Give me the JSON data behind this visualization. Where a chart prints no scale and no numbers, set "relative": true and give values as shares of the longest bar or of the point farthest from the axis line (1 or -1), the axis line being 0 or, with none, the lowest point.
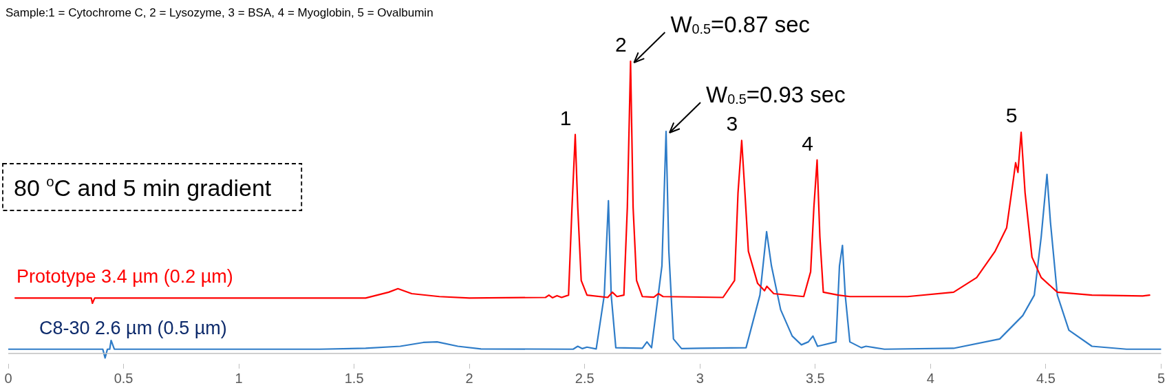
{
  "chart_data": {
    "type": "line",
    "relative": true,
    "xlim": [
      0,
      5
    ],
    "xticks": [
      0,
      0.5,
      1,
      1.5,
      2,
      2.5,
      3,
      3.5,
      4,
      4.5,
      5
    ],
    "grid": false,
    "legend": false,
    "marker": "none",
    "line_style": "solid",
    "series": [
      {
        "name": "Prototype 3.4 µm (0.2 µm)",
        "color": "#ff0000",
        "x": [
          0.03,
          0.36,
          0.365,
          0.375,
          1.55,
          1.65,
          1.69,
          1.75,
          1.87,
          2.0,
          2.33,
          2.345,
          2.36,
          2.38,
          2.4,
          2.43,
          2.445,
          2.459,
          2.47,
          2.485,
          2.51,
          2.6,
          2.62,
          2.64,
          2.67,
          2.685,
          2.699,
          2.71,
          2.725,
          2.75,
          2.8,
          2.82,
          2.84,
          3.1,
          3.15,
          3.165,
          3.181,
          3.195,
          3.21,
          3.25,
          3.28,
          3.29,
          3.32,
          3.45,
          3.48,
          3.494,
          3.508,
          3.52,
          3.535,
          3.6,
          3.65,
          3.9,
          4.1,
          4.2,
          4.28,
          4.33,
          4.36,
          4.369,
          4.379,
          4.393,
          4.41,
          4.44,
          4.48,
          4.55,
          4.7,
          4.92,
          4.95
        ],
        "values": [
          0.19,
          0.19,
          0.172,
          0.19,
          0.19,
          0.21,
          0.222,
          0.205,
          0.195,
          0.19,
          0.192,
          0.2,
          0.191,
          0.198,
          0.192,
          0.2,
          0.5,
          0.749,
          0.5,
          0.25,
          0.2,
          0.192,
          0.21,
          0.195,
          0.2,
          0.5,
          1.0,
          0.5,
          0.25,
          0.195,
          0.193,
          0.205,
          0.195,
          0.192,
          0.25,
          0.55,
          0.729,
          0.55,
          0.35,
          0.24,
          0.215,
          0.23,
          0.205,
          0.195,
          0.28,
          0.5,
          0.662,
          0.4,
          0.21,
          0.2,
          0.195,
          0.195,
          0.21,
          0.26,
          0.35,
          0.43,
          0.6,
          0.653,
          0.62,
          0.757,
          0.55,
          0.33,
          0.26,
          0.21,
          0.2,
          0.197,
          0.2
        ]
      },
      {
        "name": "C8-30 2.6 µm (0.5 µm)",
        "color": "#2e7cc8",
        "x": [
          0.0,
          0.41,
          0.42,
          0.43,
          0.44,
          0.446,
          0.46,
          1.35,
          1.55,
          1.7,
          1.8,
          1.86,
          1.95,
          2.05,
          2.45,
          2.47,
          2.49,
          2.51,
          2.55,
          2.585,
          2.603,
          2.615,
          2.635,
          2.75,
          2.77,
          2.79,
          2.835,
          2.853,
          2.865,
          2.885,
          2.92,
          3.0,
          3.2,
          3.26,
          3.289,
          3.31,
          3.35,
          3.4,
          3.44,
          3.47,
          3.49,
          3.51,
          3.59,
          3.605,
          3.618,
          3.63,
          3.65,
          3.7,
          3.72,
          3.8,
          4.1,
          4.3,
          4.4,
          4.45,
          4.48,
          4.505,
          4.52,
          4.55,
          4.6,
          4.7,
          4.85,
          5.0
        ],
        "values": [
          0.015,
          0.015,
          -0.015,
          0.015,
          0.015,
          0.045,
          0.015,
          0.015,
          0.018,
          0.025,
          0.038,
          0.04,
          0.025,
          0.016,
          0.015,
          0.025,
          0.017,
          0.022,
          0.016,
          0.2,
          0.523,
          0.2,
          0.02,
          0.018,
          0.04,
          0.02,
          0.3,
          0.76,
          0.35,
          0.05,
          0.017,
          0.018,
          0.02,
          0.2,
          0.417,
          0.3,
          0.15,
          0.06,
          0.03,
          0.04,
          0.06,
          0.025,
          0.04,
          0.3,
          0.37,
          0.2,
          0.04,
          0.02,
          0.025,
          0.015,
          0.018,
          0.05,
          0.13,
          0.2,
          0.4,
          0.613,
          0.45,
          0.2,
          0.08,
          0.025,
          0.015,
          0.015
        ]
      }
    ],
    "annotations": [
      "Sample:1 = Cytochrome C, 2 = Lysozyme, 3 = BSA, 4 = Myoglobin, 5 = Ovalbumin",
      "80 $^{o}$C and 5 min gradient",
      {
        "text": "1",
        "x": 2.459,
        "y": 0.749
      },
      {
        "text": "2",
        "x": 2.699,
        "y": 1.0
      },
      {
        "text": "3",
        "x": 3.181,
        "y": 0.729
      },
      {
        "text": "4",
        "x": 3.508,
        "y": 0.662
      },
      {
        "text": "5",
        "x": 4.393,
        "y": 0.757
      },
      {
        "text": "W$_{0.5}$=0.87 sec",
        "x": 2.699,
        "y": 1.0
      },
      {
        "text": "W$_{0.5}$=0.93 sec",
        "x": 2.853,
        "y": 0.76
      }
    ]
  }
}
